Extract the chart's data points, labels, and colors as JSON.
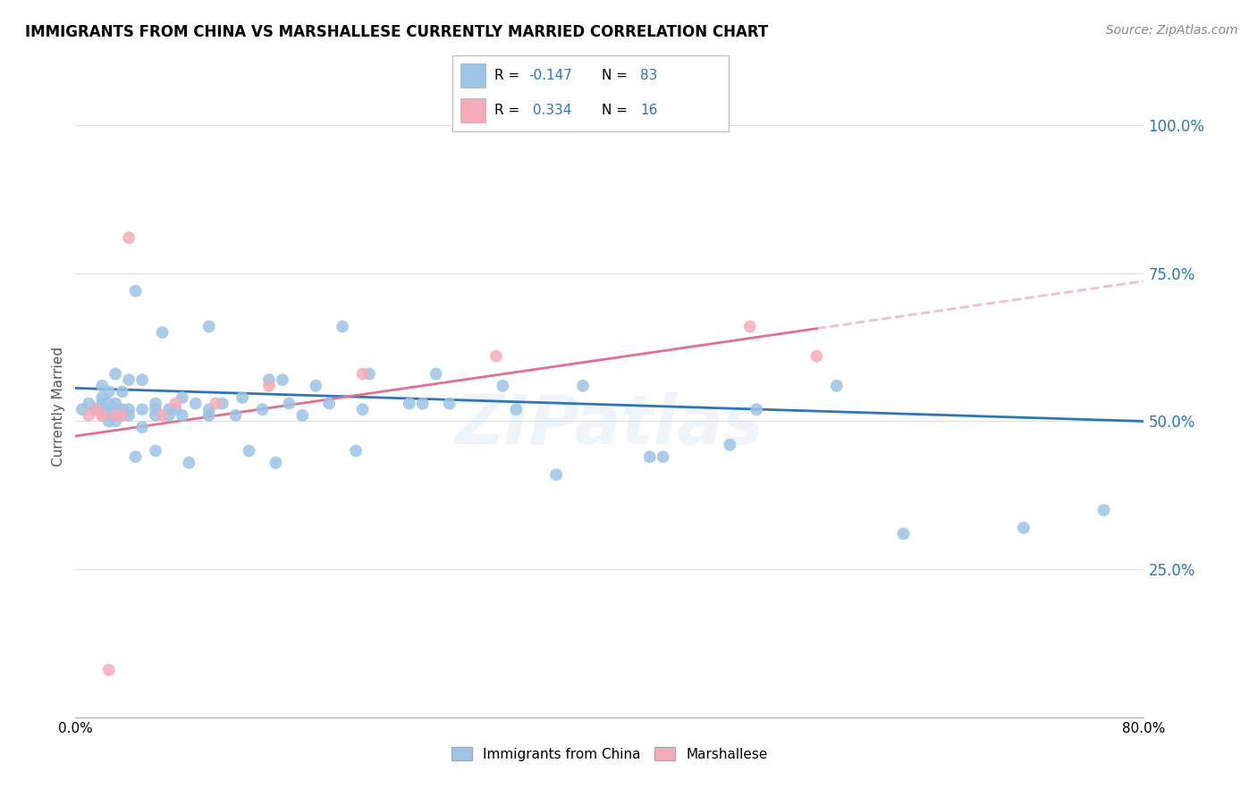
{
  "title": "IMMIGRANTS FROM CHINA VS MARSHALLESE CURRENTLY MARRIED CORRELATION CHART",
  "source": "Source: ZipAtlas.com",
  "ylabel": "Currently Married",
  "ytick_labels": [
    "25.0%",
    "50.0%",
    "75.0%",
    "100.0%"
  ],
  "ytick_values": [
    0.25,
    0.5,
    0.75,
    1.0
  ],
  "xlim": [
    0.0,
    0.8
  ],
  "ylim": [
    0.0,
    1.05
  ],
  "legend_label1": "Immigrants from China",
  "legend_label2": "Marshallese",
  "color_china": "#9DC3E6",
  "color_marshallese": "#F4ACBA",
  "trendline_china_color": "#2E75B6",
  "trendline_marshallese_color": "#E07090",
  "watermark": "ZIPatlas",
  "china_x": [
    0.005,
    0.01,
    0.015,
    0.015,
    0.015,
    0.015,
    0.02,
    0.02,
    0.02,
    0.02,
    0.02,
    0.02,
    0.02,
    0.025,
    0.025,
    0.025,
    0.025,
    0.025,
    0.025,
    0.03,
    0.03,
    0.03,
    0.03,
    0.03,
    0.03,
    0.035,
    0.035,
    0.035,
    0.04,
    0.04,
    0.04,
    0.045,
    0.045,
    0.05,
    0.05,
    0.05,
    0.06,
    0.06,
    0.06,
    0.06,
    0.065,
    0.07,
    0.07,
    0.075,
    0.08,
    0.08,
    0.085,
    0.09,
    0.1,
    0.1,
    0.1,
    0.11,
    0.12,
    0.125,
    0.13,
    0.14,
    0.145,
    0.15,
    0.155,
    0.16,
    0.17,
    0.18,
    0.19,
    0.2,
    0.21,
    0.215,
    0.22,
    0.25,
    0.26,
    0.27,
    0.28,
    0.32,
    0.33,
    0.36,
    0.38,
    0.43,
    0.44,
    0.49,
    0.51,
    0.57,
    0.62,
    0.71,
    0.77
  ],
  "china_y": [
    0.52,
    0.53,
    0.52,
    0.52,
    0.52,
    0.52,
    0.51,
    0.52,
    0.52,
    0.52,
    0.53,
    0.54,
    0.56,
    0.5,
    0.51,
    0.52,
    0.52,
    0.53,
    0.55,
    0.5,
    0.51,
    0.51,
    0.52,
    0.53,
    0.58,
    0.51,
    0.52,
    0.55,
    0.51,
    0.52,
    0.57,
    0.44,
    0.72,
    0.49,
    0.52,
    0.57,
    0.45,
    0.51,
    0.52,
    0.53,
    0.65,
    0.51,
    0.52,
    0.52,
    0.51,
    0.54,
    0.43,
    0.53,
    0.51,
    0.52,
    0.66,
    0.53,
    0.51,
    0.54,
    0.45,
    0.52,
    0.57,
    0.43,
    0.57,
    0.53,
    0.51,
    0.56,
    0.53,
    0.66,
    0.45,
    0.52,
    0.58,
    0.53,
    0.53,
    0.58,
    0.53,
    0.56,
    0.52,
    0.41,
    0.56,
    0.44,
    0.44,
    0.46,
    0.52,
    0.56,
    0.31,
    0.32,
    0.35
  ],
  "marshallese_x": [
    0.01,
    0.015,
    0.02,
    0.02,
    0.025,
    0.03,
    0.035,
    0.04,
    0.065,
    0.075,
    0.105,
    0.145,
    0.215,
    0.315,
    0.505,
    0.555
  ],
  "marshallese_y": [
    0.51,
    0.52,
    0.51,
    0.51,
    0.08,
    0.51,
    0.51,
    0.81,
    0.51,
    0.53,
    0.53,
    0.56,
    0.58,
    0.61,
    0.66,
    0.61
  ]
}
